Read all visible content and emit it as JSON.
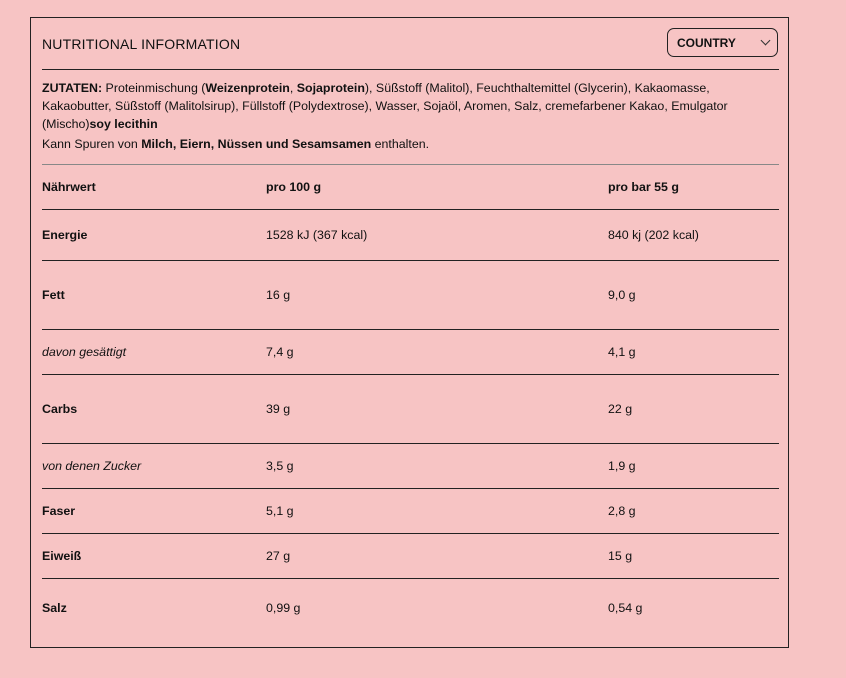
{
  "header": {
    "title": "NUTRITIONAL INFORMATION",
    "country_label": "COUNTRY"
  },
  "ingredients": {
    "label": "ZUTATEN:",
    "parts": [
      " Proteinmischung (",
      "Weizenprotein",
      ", ",
      "Sojaprotein",
      "), Süßstoff (Malitol), Feuchthaltemittel (Glycerin), Kakaomasse, Kakaobutter, Süßstoff (Malitolsirup), Füllstoff (Polydextrose), Wasser, Sojaöl, Aromen, Salz, cremefarbener Kakao, Emulgator (Mischo)",
      "soy lecithin"
    ]
  },
  "traces": {
    "prefix": "Kann Spuren von ",
    "allergens": "Milch, Eiern, Nüssen und Sesamsamen",
    "suffix": " enthalten."
  },
  "table": {
    "headers": [
      "Nährwert",
      "pro 100 g",
      "pro bar 55 g"
    ],
    "rows": [
      {
        "name": "Energie",
        "per100": "1528 kJ (367 kcal)",
        "perbar": "840 kj (202 kcal)",
        "style": "bold"
      },
      {
        "name": "Fett",
        "per100": "16 g",
        "perbar": "9,0 g",
        "style": "bold"
      },
      {
        "name": "davon gesättigt",
        "per100": "7,4 g",
        "perbar": "4,1 g",
        "style": "italic"
      },
      {
        "name": "Carbs",
        "per100": "39 g",
        "perbar": "22 g",
        "style": "bold"
      },
      {
        "name": "von denen Zucker",
        "per100": "3,5 g",
        "perbar": "1,9 g",
        "style": "italic"
      },
      {
        "name": "Faser",
        "per100": "5,1 g",
        "perbar": "2,8 g",
        "style": "bold"
      },
      {
        "name": "Eiweiß",
        "per100": "27 g",
        "perbar": "15 g",
        "style": "bold"
      },
      {
        "name": "Salz",
        "per100": "0,99 g",
        "perbar": "0,54 g",
        "style": "bold"
      }
    ]
  }
}
